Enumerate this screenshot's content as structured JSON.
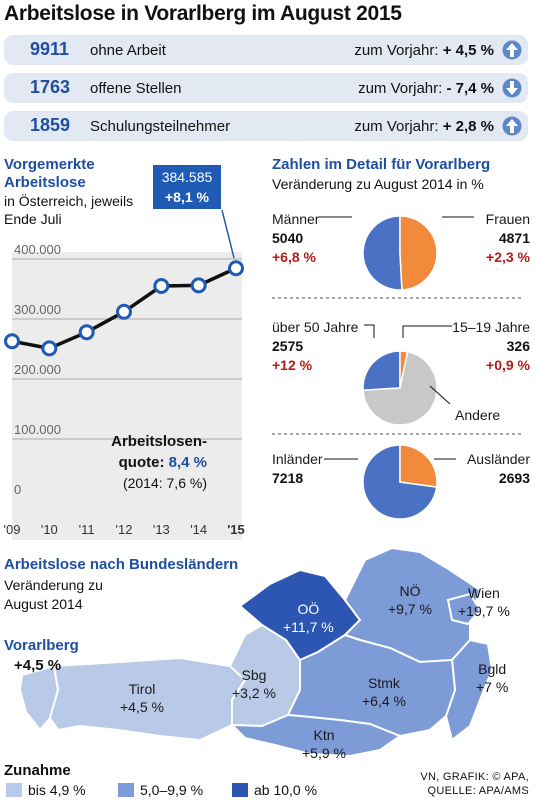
{
  "title": "Arbeitslose in Vorarlberg im August 2015",
  "stats": [
    {
      "number": "9911",
      "label": "ohne Arbeit",
      "comparison": "zum Vorjahr:",
      "change": "+ 4,5 %",
      "direction": "up"
    },
    {
      "number": "1763",
      "label": "offene Stellen",
      "comparison": "zum Vorjahr:",
      "change": "- 7,4 %",
      "direction": "down"
    },
    {
      "number": "1859",
      "label": "Schulungsteilnehmer",
      "comparison": "zum Vorjahr:",
      "change": "+ 2,8 %",
      "direction": "up"
    }
  ],
  "line_chart": {
    "title_line1": "Vorgemerkte",
    "title_line2": "Arbeitslose",
    "subtitle_line1": "in Österreich, jeweils",
    "subtitle_line2": "Ende Juli",
    "callout_value": "384.585",
    "callout_change": "+8,1 %",
    "quote_line1": "Arbeitslosen-",
    "quote_label": "quote:",
    "quote_value": "8,4 %",
    "quote_prev": "(2014: 7,6 %)"
  },
  "detail": {
    "title": "Zahlen im Detail für Vorarlberg",
    "subtitle": "Veränderung zu August 2014 in %",
    "pies": [
      {
        "left_name": "Männer",
        "left_value": "5040",
        "left_change": "+6,8 %",
        "right_name": "Frauen",
        "right_value": "4871",
        "right_change": "+2,3 %"
      },
      {
        "left_name": "über 50 Jahre",
        "left_value": "2575",
        "left_change": "+12 %",
        "right_name": "15–19 Jahre",
        "right_value": "326",
        "right_change": "+0,9 %",
        "other_name": "Andere"
      },
      {
        "left_name": "Inländer",
        "left_value": "7218",
        "right_name": "Ausländer",
        "right_value": "2693"
      }
    ]
  },
  "map": {
    "title": "Arbeitslose nach Bundesländern",
    "subtitle_line1": "Veränderung zu",
    "subtitle_line2": "August 2014",
    "vorarlberg_name": "Vorarlberg",
    "vorarlberg_value": "+4,5 %",
    "regions": [
      {
        "id": "tirol",
        "name": "Tirol",
        "value": "+4,5 %"
      },
      {
        "id": "sbg",
        "name": "Sbg",
        "value": "+3,2 %"
      },
      {
        "id": "ooe",
        "name": "OÖ",
        "value": "+11,7 %"
      },
      {
        "id": "noe",
        "name": "NÖ",
        "value": "+9,7 %"
      },
      {
        "id": "wien",
        "name": "Wien",
        "value": "+19,7 %"
      },
      {
        "id": "bgld",
        "name": "Bgld",
        "value": "+7 %"
      },
      {
        "id": "stmk",
        "name": "Stmk",
        "value": "+6,4 %"
      },
      {
        "id": "ktn",
        "name": "Ktn",
        "value": "+5,9 %"
      }
    ],
    "legend_title": "Zunahme",
    "legend": [
      {
        "label": "bis 4,9 %",
        "color": "#b9c9e8"
      },
      {
        "label": "5,0–9,9 %",
        "color": "#7d9bd6"
      },
      {
        "label": "ab 10,0 %",
        "color": "#2d56b3"
      }
    ]
  },
  "credit_line1": "VN, GRAFIK: © APA,",
  "credit_line2": "QUELLE: APA/AMS",
  "colors": {
    "accent": "#1f4fa0",
    "negative_red": "#b31b1b",
    "orange": "#f28a3c",
    "blue": "#4a72c4",
    "grey": "#c8c8c8"
  },
  "chart_data": [
    {
      "type": "line",
      "title": "Vorgemerkte Arbeitslose",
      "x": [
        "'09",
        "'10",
        "'11",
        "'12",
        "'13",
        "'14",
        "'15"
      ],
      "y_tick_labels": [
        "0",
        "100.000",
        "200.000",
        "300.000",
        "400.000"
      ],
      "series": [
        {
          "values": [
            263000,
            251000,
            278000,
            312000,
            355000,
            356000,
            384585
          ]
        }
      ],
      "ylim": [
        0,
        400000
      ],
      "grid": true
    },
    {
      "type": "pie",
      "slices": [
        {
          "name": "Männer",
          "value": 5040
        },
        {
          "name": "Frauen",
          "value": 4871
        }
      ]
    },
    {
      "type": "pie",
      "slices": [
        {
          "name": "über 50 Jahre",
          "value": 2575
        },
        {
          "name": "15–19 Jahre",
          "value": 326
        },
        {
          "name": "Andere",
          "value": 7010
        }
      ]
    },
    {
      "type": "pie",
      "slices": [
        {
          "name": "Inländer",
          "value": 7218
        },
        {
          "name": "Ausländer",
          "value": 2693
        }
      ]
    }
  ]
}
